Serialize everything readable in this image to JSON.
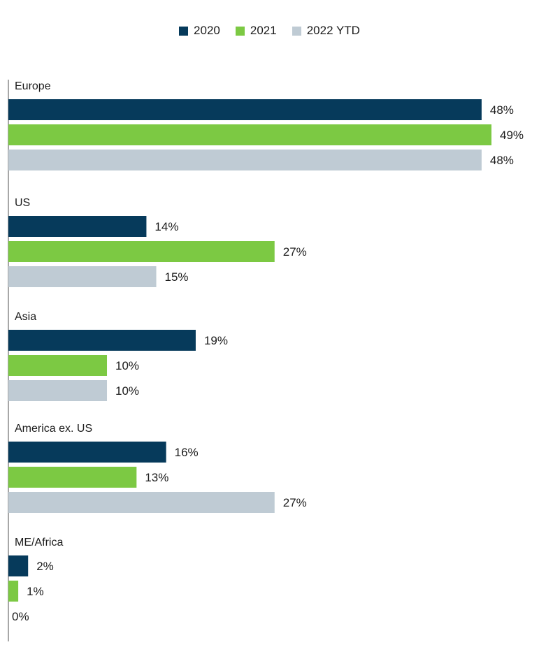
{
  "chart_data": {
    "type": "bar",
    "orientation": "horizontal",
    "categories": [
      "Europe",
      "US",
      "Asia",
      "America ex. US",
      "ME/Africa"
    ],
    "series": [
      {
        "name": "2020",
        "color": "#063a5b",
        "values": [
          48,
          14,
          19,
          16,
          2
        ],
        "labels": [
          "48%",
          "14%",
          "19%",
          "16%",
          "2%"
        ]
      },
      {
        "name": "2021",
        "color": "#7cc943",
        "values": [
          49,
          27,
          10,
          13,
          1
        ],
        "labels": [
          "49%",
          "27%",
          "10%",
          "13%",
          "1%"
        ]
      },
      {
        "name": "2022 YTD",
        "color": "#bfcbd4",
        "values": [
          48,
          15,
          10,
          27,
          0
        ],
        "labels": [
          "48%",
          "15%",
          "10%",
          "27%",
          "0%"
        ]
      }
    ],
    "xlim": [
      0,
      49
    ],
    "legend_position": "top-center",
    "grid": false,
    "title": "",
    "xlabel": "",
    "ylabel": ""
  }
}
